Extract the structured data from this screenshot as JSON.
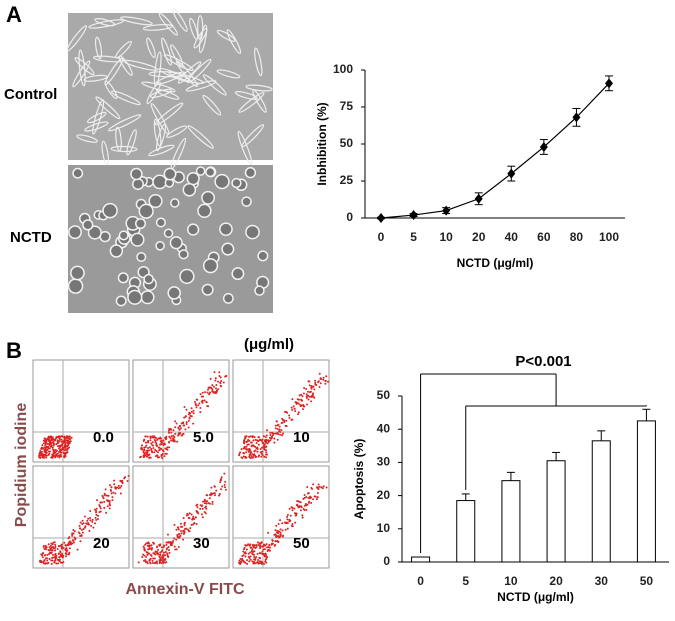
{
  "panels": {
    "a": {
      "label": "A",
      "images": [
        {
          "label": "Control"
        },
        {
          "label": "NCTD"
        }
      ]
    },
    "b": {
      "label": "B",
      "unit": "(μg/ml)",
      "flow": {
        "y_label": "Popidium iodine",
        "x_label": "Annexin-V FITC",
        "plots": [
          "0.0",
          "5.0",
          "10",
          "20",
          "30",
          "50"
        ]
      }
    }
  },
  "chart_data": [
    {
      "type": "line",
      "y_label": "Inbhibition (%)",
      "x_label": "NCTD  (μg/ml)",
      "categories": [
        "0",
        "5",
        "10",
        "20",
        "40",
        "60",
        "80",
        "100"
      ],
      "values": [
        0,
        2,
        5,
        13,
        30,
        48,
        68,
        91
      ],
      "errors": [
        0.5,
        1,
        2,
        4,
        5,
        5,
        6,
        5
      ],
      "color": "#000000",
      "ylim": [
        0,
        100
      ],
      "yticks": [
        0,
        25,
        50,
        75,
        100
      ]
    },
    {
      "type": "bar",
      "y_label": "Apoptosis (%)",
      "x_label": "NCTD (μg/ml)",
      "categories": [
        "0",
        "5",
        "10",
        "20",
        "30",
        "50"
      ],
      "values": [
        1.5,
        18.5,
        24.5,
        30.5,
        36.5,
        42.5
      ],
      "errors": [
        0,
        2,
        2.5,
        2.5,
        3,
        3.5
      ],
      "color": "#ffffff",
      "ylim": [
        0,
        50
      ],
      "yticks": [
        0,
        10,
        20,
        30,
        40,
        50
      ],
      "annotation": "P<0.001"
    }
  ]
}
